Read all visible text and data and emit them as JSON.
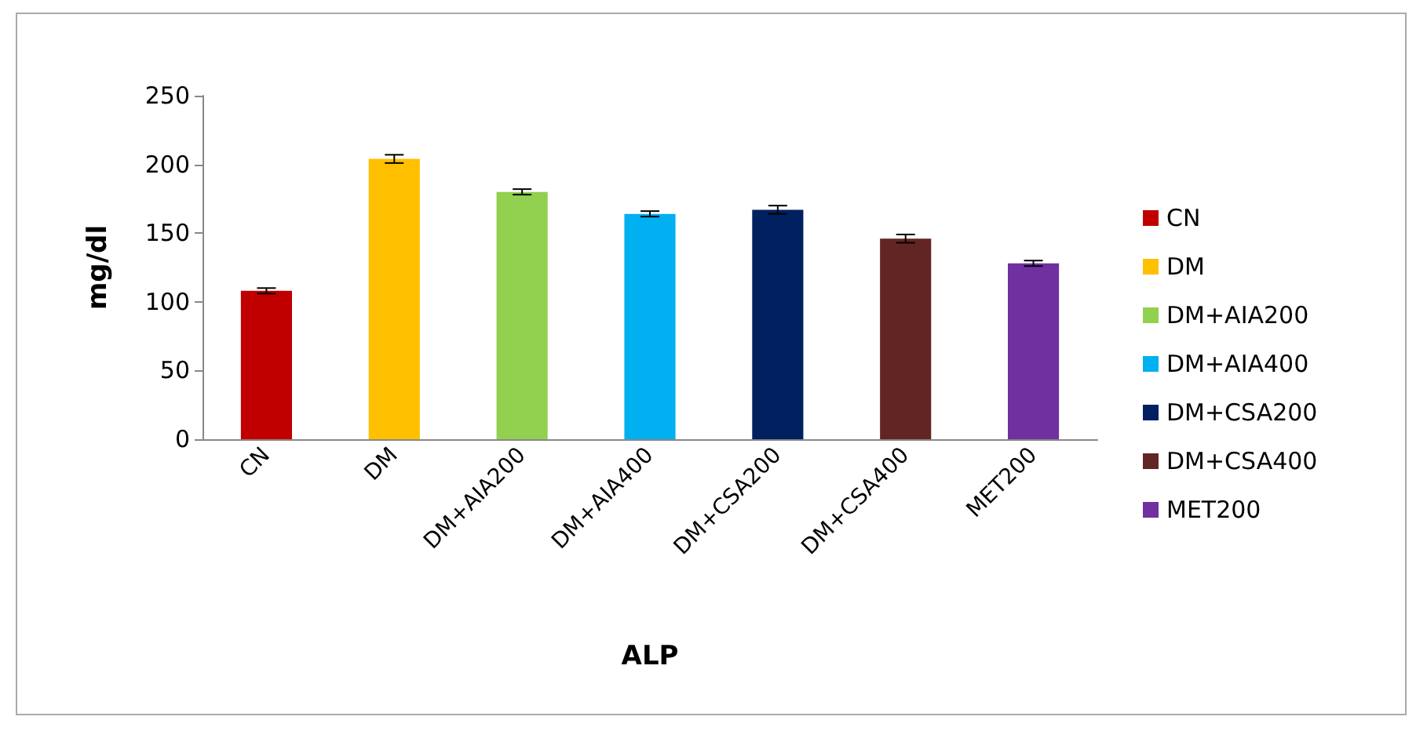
{
  "chart_data": {
    "type": "bar",
    "xlabel": "ALP",
    "ylabel": "mg/dl",
    "categories": [
      "CN",
      "DM",
      "DM+AIA200",
      "DM+AIA400",
      "DM+CSA200",
      "DM+CSA400",
      "MET200"
    ],
    "series": [
      {
        "name": "CN",
        "color": "#c00000",
        "values": [
          108,
          null,
          null,
          null,
          null,
          null,
          null
        ],
        "errors": [
          2,
          null,
          null,
          null,
          null,
          null,
          null
        ]
      },
      {
        "name": "DM",
        "color": "#ffc000",
        "values": [
          null,
          204,
          null,
          null,
          null,
          null,
          null
        ],
        "errors": [
          null,
          3,
          null,
          null,
          null,
          null,
          null
        ]
      },
      {
        "name": "DM+AIA200",
        "color": "#92d050",
        "values": [
          null,
          null,
          180,
          null,
          null,
          null,
          null
        ],
        "errors": [
          null,
          null,
          2,
          null,
          null,
          null,
          null
        ]
      },
      {
        "name": "DM+AIA400",
        "color": "#00b0f0",
        "values": [
          null,
          null,
          null,
          164,
          null,
          null,
          null
        ],
        "errors": [
          null,
          null,
          null,
          2,
          null,
          null,
          null
        ]
      },
      {
        "name": "DM+CSA200",
        "color": "#002060",
        "values": [
          null,
          null,
          null,
          null,
          167,
          null,
          null
        ],
        "errors": [
          null,
          null,
          null,
          null,
          3,
          null,
          null
        ]
      },
      {
        "name": "DM+CSA400",
        "color": "#632523",
        "values": [
          null,
          null,
          null,
          null,
          null,
          146,
          null
        ],
        "errors": [
          null,
          null,
          null,
          null,
          null,
          3,
          null
        ]
      },
      {
        "name": "MET200",
        "color": "#7030a0",
        "values": [
          null,
          null,
          null,
          null,
          null,
          null,
          128
        ],
        "errors": [
          null,
          null,
          null,
          null,
          null,
          null,
          2
        ]
      }
    ],
    "ylim": [
      0,
      250
    ],
    "yticks": [
      0,
      50,
      100,
      150,
      200,
      250
    ],
    "grid": false,
    "legend": "right"
  }
}
